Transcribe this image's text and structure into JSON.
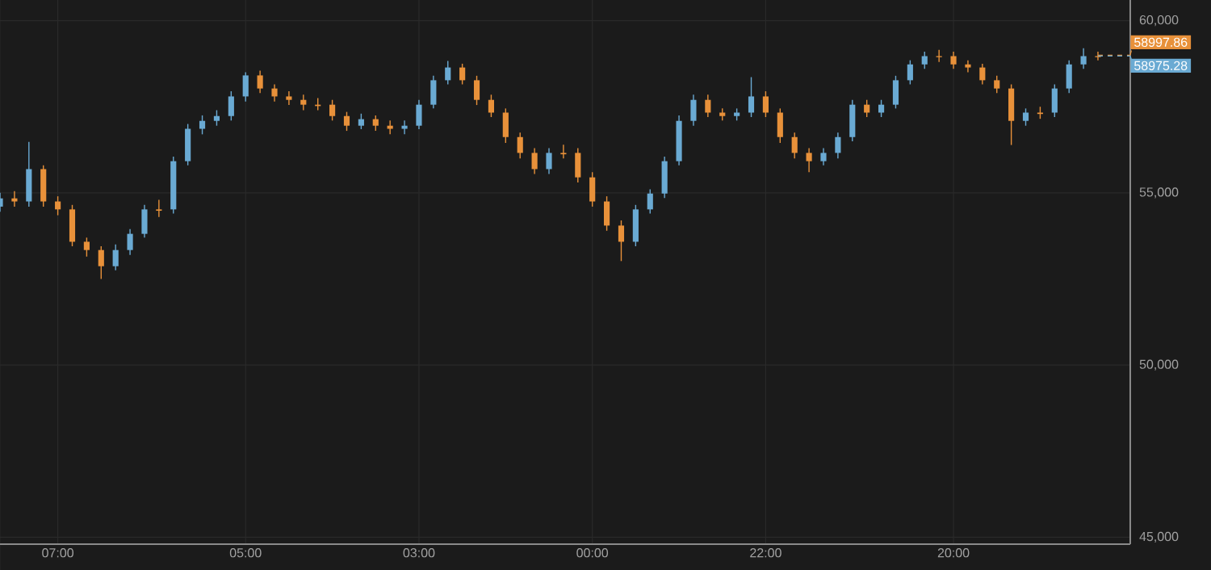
{
  "chart_data": {
    "type": "candlestick",
    "categories": [
      null,
      null,
      null,
      null,
      "07:00",
      null,
      null,
      null,
      null,
      null,
      null,
      null,
      null,
      null,
      null,
      null,
      null,
      "05:00",
      null,
      null,
      null,
      null,
      null,
      null,
      null,
      null,
      null,
      null,
      null,
      "03:00",
      null,
      null,
      null,
      null,
      null,
      null,
      null,
      null,
      null,
      null,
      null,
      "00:00",
      null,
      null,
      null,
      null,
      null,
      null,
      null,
      null,
      null,
      null,
      null,
      "22:00",
      null,
      null,
      null,
      null,
      null,
      null,
      null,
      null,
      null,
      null,
      null,
      null,
      "20:00",
      null,
      null,
      null,
      null,
      null,
      null,
      null,
      null,
      null,
      null
    ],
    "ohlc": [
      [
        54600,
        55000,
        54450,
        54840
      ],
      [
        54840,
        55050,
        54600,
        54750
      ],
      [
        54750,
        56480,
        54600,
        55690
      ],
      [
        55690,
        55800,
        54600,
        54750
      ],
      [
        54750,
        54900,
        54350,
        54520
      ],
      [
        54520,
        54650,
        53450,
        53580
      ],
      [
        53580,
        53700,
        53150,
        53340
      ],
      [
        53340,
        53450,
        52500,
        52870
      ],
      [
        52870,
        53500,
        52750,
        53340
      ],
      [
        53340,
        53950,
        53200,
        53810
      ],
      [
        53810,
        54650,
        53700,
        54520
      ],
      [
        54520,
        54800,
        54300,
        54480
      ],
      [
        54520,
        56050,
        54400,
        55920
      ],
      [
        55920,
        57000,
        55800,
        56860
      ],
      [
        56860,
        57250,
        56700,
        57090
      ],
      [
        57090,
        57400,
        56950,
        57230
      ],
      [
        57230,
        57950,
        57100,
        57800
      ],
      [
        57800,
        58500,
        57650,
        58410
      ],
      [
        58410,
        58550,
        57900,
        58030
      ],
      [
        58030,
        58150,
        57650,
        57800
      ],
      [
        57800,
        57950,
        57550,
        57700
      ],
      [
        57700,
        57850,
        57400,
        57560
      ],
      [
        57560,
        57750,
        57400,
        57520
      ],
      [
        57560,
        57700,
        57100,
        57230
      ],
      [
        57230,
        57350,
        56800,
        56950
      ],
      [
        56950,
        57300,
        56850,
        57140
      ],
      [
        57140,
        57250,
        56800,
        56950
      ],
      [
        56950,
        57100,
        56700,
        56860
      ],
      [
        56860,
        57100,
        56700,
        56950
      ],
      [
        56950,
        57700,
        56850,
        57560
      ],
      [
        57560,
        58400,
        57450,
        58270
      ],
      [
        58270,
        58830,
        58150,
        58640
      ],
      [
        58640,
        58750,
        58150,
        58270
      ],
      [
        58270,
        58400,
        57550,
        57700
      ],
      [
        57700,
        57850,
        57200,
        57330
      ],
      [
        57330,
        57450,
        56450,
        56620
      ],
      [
        56620,
        56750,
        56000,
        56160
      ],
      [
        56160,
        56300,
        55550,
        55690
      ],
      [
        55690,
        56300,
        55550,
        56160
      ],
      [
        56160,
        56400,
        56000,
        56120
      ],
      [
        56160,
        56300,
        55300,
        55450
      ],
      [
        55450,
        55600,
        54600,
        54750
      ],
      [
        54750,
        54900,
        53900,
        54050
      ],
      [
        54050,
        54200,
        53020,
        53580
      ],
      [
        53580,
        54650,
        53450,
        54520
      ],
      [
        54520,
        55100,
        54400,
        54980
      ],
      [
        54980,
        56050,
        54850,
        55920
      ],
      [
        55920,
        57250,
        55800,
        57090
      ],
      [
        57090,
        57850,
        56950,
        57700
      ],
      [
        57700,
        57850,
        57200,
        57330
      ],
      [
        57330,
        57450,
        57100,
        57230
      ],
      [
        57230,
        57450,
        57100,
        57330
      ],
      [
        57330,
        58360,
        57200,
        57800
      ],
      [
        57800,
        57950,
        57200,
        57330
      ],
      [
        57330,
        57450,
        56450,
        56620
      ],
      [
        56620,
        56750,
        56000,
        56160
      ],
      [
        56160,
        56300,
        55600,
        55920
      ],
      [
        55920,
        56300,
        55800,
        56160
      ],
      [
        56160,
        56750,
        56000,
        56620
      ],
      [
        56620,
        57700,
        56500,
        57560
      ],
      [
        57560,
        57700,
        57200,
        57330
      ],
      [
        57330,
        57700,
        57200,
        57560
      ],
      [
        57560,
        58400,
        57450,
        58270
      ],
      [
        58270,
        58850,
        58150,
        58730
      ],
      [
        58730,
        59100,
        58600,
        58970
      ],
      [
        58970,
        59150,
        58800,
        58940
      ],
      [
        58970,
        59100,
        58600,
        58730
      ],
      [
        58730,
        58850,
        58500,
        58640
      ],
      [
        58640,
        58750,
        58150,
        58270
      ],
      [
        58270,
        58400,
        57900,
        58030
      ],
      [
        58030,
        58150,
        56390,
        57090
      ],
      [
        57090,
        57450,
        56950,
        57330
      ],
      [
        57330,
        57500,
        57150,
        57290
      ],
      [
        57330,
        58150,
        57200,
        58030
      ],
      [
        58030,
        58850,
        57900,
        58730
      ],
      [
        58730,
        59200,
        58600,
        58970
      ],
      [
        58970,
        59100,
        58850,
        58940
      ]
    ],
    "colors": [
      "#6aaad3",
      "#e8913a",
      "#6aaad3",
      "#e8913a",
      "#e8913a",
      "#e8913a",
      "#e8913a",
      "#e8913a",
      "#6aaad3",
      "#6aaad3",
      "#6aaad3",
      "#e8913a",
      "#6aaad3",
      "#6aaad3",
      "#6aaad3",
      "#6aaad3",
      "#6aaad3",
      "#6aaad3",
      "#e8913a",
      "#e8913a",
      "#e8913a",
      "#e8913a",
      "#e8913a",
      "#e8913a",
      "#e8913a",
      "#6aaad3",
      "#e8913a",
      "#e8913a",
      "#6aaad3",
      "#6aaad3",
      "#6aaad3",
      "#6aaad3",
      "#e8913a",
      "#e8913a",
      "#e8913a",
      "#e8913a",
      "#e8913a",
      "#e8913a",
      "#6aaad3",
      "#e8913a",
      "#e8913a",
      "#e8913a",
      "#e8913a",
      "#e8913a",
      "#6aaad3",
      "#6aaad3",
      "#6aaad3",
      "#6aaad3",
      "#6aaad3",
      "#e8913a",
      "#e8913a",
      "#6aaad3",
      "#6aaad3",
      "#e8913a",
      "#e8913a",
      "#e8913a",
      "#e8913a",
      "#6aaad3",
      "#6aaad3",
      "#6aaad3",
      "#e8913a",
      "#6aaad3",
      "#6aaad3",
      "#6aaad3",
      "#6aaad3",
      "#e8913a",
      "#e8913a",
      "#e8913a",
      "#e8913a",
      "#e8913a",
      "#e8913a",
      "#6aaad3",
      "#e8913a",
      "#6aaad3",
      "#6aaad3",
      "#6aaad3",
      "#e8913a"
    ],
    "ylim": [
      44800,
      60600
    ],
    "yticks": [
      {
        "value": 45000,
        "label": "45,000"
      },
      {
        "value": 50000,
        "label": "50,000"
      },
      {
        "value": 55000,
        "label": "55,000"
      },
      {
        "value": 60000,
        "label": "60,000"
      }
    ],
    "grid": true,
    "ref_lines": [
      {
        "axis": "y",
        "value": 58997.86,
        "label": "58997.86",
        "color": "#e8913a",
        "line_style": "dashed"
      },
      {
        "axis": "y",
        "value": 58975.28,
        "label": "58975.28",
        "color": "#6aaad3",
        "line_style": "dashed"
      }
    ]
  }
}
